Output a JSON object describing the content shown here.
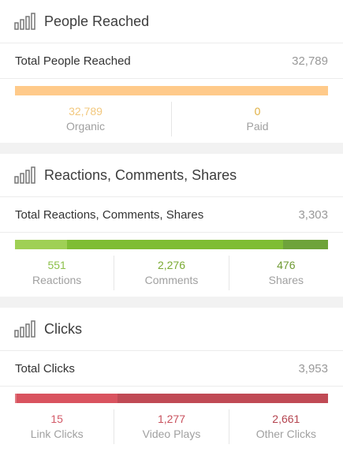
{
  "sections": [
    {
      "title": "People Reached",
      "icon": "bar-chart-icon",
      "total_label": "Total People Reached",
      "total_value": "32,789",
      "value_color": "#f0c47e",
      "bar": [
        {
          "fraction": 1.0,
          "color": "#ffca8a"
        }
      ],
      "stats": [
        {
          "value": "32,789",
          "label": "Organic",
          "color": "#f2c87e"
        },
        {
          "value": "0",
          "label": "Paid",
          "color": "#e0b043"
        }
      ]
    },
    {
      "title": "Reactions, Comments, Shares",
      "icon": "bar-chart-icon",
      "total_label": "Total Reactions, Comments, Shares",
      "total_value": "3,303",
      "bar": [
        {
          "fraction": 0.167,
          "color": "#9fd055"
        },
        {
          "fraction": 0.689,
          "color": "#7fbd34"
        },
        {
          "fraction": 0.144,
          "color": "#6ea33a"
        }
      ],
      "stats": [
        {
          "value": "551",
          "label": "Reactions",
          "color": "#8cc04a"
        },
        {
          "value": "2,276",
          "label": "Comments",
          "color": "#7aaa32"
        },
        {
          "value": "476",
          "label": "Shares",
          "color": "#6f9a33"
        }
      ]
    },
    {
      "title": "Clicks",
      "icon": "bar-chart-icon",
      "total_label": "Total Clicks",
      "total_value": "3,953",
      "bar": [
        {
          "fraction": 0.004,
          "color": "#e07a82"
        },
        {
          "fraction": 0.323,
          "color": "#d9535f"
        },
        {
          "fraction": 0.673,
          "color": "#c04a55"
        }
      ],
      "stats": [
        {
          "value": "15",
          "label": "Link Clicks",
          "color": "#d35a68"
        },
        {
          "value": "1,277",
          "label": "Video Plays",
          "color": "#c8505c"
        },
        {
          "value": "2,661",
          "label": "Other Clicks",
          "color": "#b4444f"
        }
      ]
    }
  ]
}
